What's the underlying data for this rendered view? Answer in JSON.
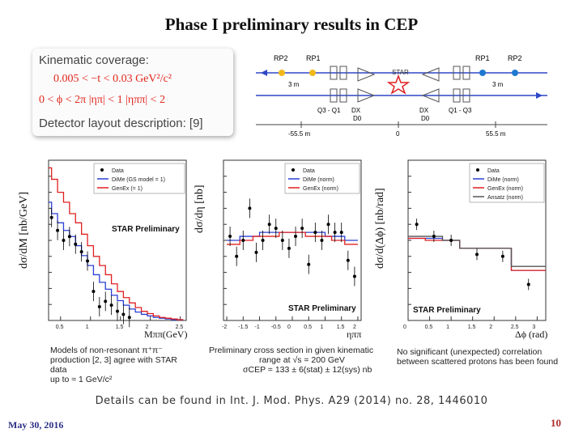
{
  "slide": {
    "title": "Phase I preliminary results in CEP",
    "details": "Details can be found in Int. J. Mod. Phys. A29 (2014) no. 28, 1446010",
    "date": "May 30, 2016",
    "page_number": "10"
  },
  "kinematics": {
    "heading": "Kinematic coverage:",
    "line1": "0.005 < −t < 0.03 GeV²/c²",
    "line2": "0 < ϕ < 2π   |ηπ| < 1   |ηππ| < 2",
    "layout_heading": "Detector layout description: [9]"
  },
  "detector": {
    "labels_top": [
      "RP2",
      "RP1",
      "RP1",
      "RP2"
    ],
    "labels_mid": [
      "Q3 - Q1",
      "DX",
      "DX",
      "D0",
      "Q1 - Q3"
    ],
    "d0_left": "D0",
    "dist": [
      "3 m",
      "3 m"
    ],
    "star": "STAR",
    "axis_ticks": [
      "-55.5 m",
      "0",
      "55.5 m"
    ]
  },
  "legend": {
    "data": "Data",
    "dime_p1": "DiMe (GS model = 1)",
    "genex_p1": "GenEx (= 1)",
    "dime": "DiMe (norm)",
    "genex": "GenEx (norm)",
    "ansatz": "Ansatz (norm)"
  },
  "colors": {
    "dime": "#2a3fd4",
    "genex": "#e02020",
    "ansatz": "#555555"
  },
  "panels": {
    "p1": {
      "ylabel": "dσ/dM [nb/GeV]",
      "xlabel": "Mππ(GeV)",
      "tag": "STAR Preliminary",
      "ticks": [
        "0.5",
        "1",
        "1.5",
        "2",
        "2.5"
      ],
      "caption": [
        "Models of non-resonant π⁺π⁻",
        "production [2, 3] agree with STAR data",
        "up to ≈ 1 GeV/c²"
      ]
    },
    "p2": {
      "ylabel": "dσ/dη [nb]",
      "xlabel": "ηππ",
      "tag": "STAR Preliminary",
      "ticks": [
        "-2",
        "-1.5",
        "-1",
        "-0.5",
        "0",
        "0.5",
        "1",
        "1.5",
        "2"
      ],
      "caption": [
        "Preliminary cross section in given kinematic",
        "range at √s = 200 GeV",
        "σCEP = 133 ± 6(stat) ± 12(sys) nb"
      ]
    },
    "p3": {
      "ylabel": "dσ/d(Δϕ) [nb/rad]",
      "xlabel": "Δϕ (rad)",
      "tag": "STAR Preliminary",
      "ticks": [
        "0",
        "0.5",
        "1",
        "1.5",
        "2",
        "2.5",
        "3"
      ],
      "caption": [
        "No significant (unexpected) correlation",
        "between scattered protons has been found"
      ]
    }
  },
  "chart_data": [
    {
      "type": "line",
      "title": "",
      "xlabel": "Mππ(GeV)",
      "ylabel": "dσ/dM [nb/GeV]",
      "xlim": [
        0.3,
        2.6
      ],
      "ylim": [
        0,
        210
      ],
      "data_points": {
        "x": [
          0.35,
          0.45,
          0.55,
          0.65,
          0.75,
          0.85,
          0.95,
          1.05,
          1.15,
          1.25,
          1.35,
          1.45,
          1.55,
          1.65
        ],
        "y": [
          135,
          118,
          105,
          110,
          100,
          90,
          78,
          38,
          18,
          25,
          20,
          12,
          8,
          4
        ]
      },
      "series": [
        {
          "name": "DiMe (GS model = 1)",
          "x": [
            0.3,
            0.4,
            0.5,
            0.6,
            0.7,
            0.8,
            0.9,
            1.0,
            1.1,
            1.2,
            1.3,
            1.4,
            1.5,
            1.6,
            1.7,
            1.8,
            1.9,
            2.0,
            2.1,
            2.2,
            2.3,
            2.4,
            2.5
          ],
          "values": [
            155,
            140,
            128,
            118,
            110,
            98,
            85,
            72,
            60,
            50,
            41,
            33,
            26,
            20,
            15,
            11,
            8,
            6,
            4,
            3,
            2,
            1,
            1
          ]
        },
        {
          "name": "GenEx (= 1)",
          "x": [
            0.3,
            0.4,
            0.5,
            0.6,
            0.7,
            0.8,
            0.9,
            1.0,
            1.1,
            1.2,
            1.3,
            1.4,
            1.5,
            1.6,
            1.7,
            1.8,
            1.9,
            2.0,
            2.1,
            2.2,
            2.3,
            2.4,
            2.5
          ],
          "values": [
            200,
            185,
            168,
            155,
            140,
            128,
            113,
            98,
            84,
            72,
            60,
            48,
            38,
            30,
            23,
            17,
            12,
            9,
            6,
            4,
            3,
            2,
            1
          ]
        }
      ]
    },
    {
      "type": "line",
      "xlabel": "ηππ",
      "ylabel": "dσ/dη [nb]",
      "xlim": [
        -2.1,
        2.1
      ],
      "ylim": [
        0,
        40
      ],
      "data_points": {
        "x": [
          -1.9,
          -1.7,
          -1.5,
          -1.3,
          -1.1,
          -0.9,
          -0.7,
          -0.5,
          -0.3,
          -0.1,
          0.1,
          0.3,
          0.5,
          0.7,
          0.9,
          1.1,
          1.3,
          1.5,
          1.7,
          1.9
        ],
        "y": [
          21,
          16,
          20,
          28,
          17,
          20,
          24,
          23,
          20,
          18,
          21,
          23,
          14,
          22,
          20,
          24,
          22,
          22,
          15,
          11
        ]
      },
      "series": [
        {
          "name": "DiMe (norm)",
          "values": [
            20,
            20,
            21,
            21,
            21,
            22,
            22,
            22,
            22,
            22,
            22,
            22,
            22,
            22,
            22,
            21,
            21,
            21,
            20,
            20
          ]
        },
        {
          "name": "GenEx (norm)",
          "values": [
            19,
            19,
            20,
            20,
            21,
            21,
            21,
            21,
            22,
            22,
            22,
            22,
            21,
            21,
            21,
            21,
            20,
            20,
            19,
            19
          ]
        }
      ]
    },
    {
      "type": "line",
      "xlabel": "Δϕ (rad)",
      "ylabel": "dσ/d(Δϕ) [nb/rad]",
      "xlim": [
        0,
        3.2
      ],
      "ylim": [
        0,
        80
      ],
      "data_points": {
        "x": [
          0.2,
          0.6,
          1.0,
          1.6,
          2.2,
          2.8
        ],
        "y": [
          48,
          42,
          40,
          33,
          32,
          18
        ]
      },
      "series": [
        {
          "name": "DiMe (norm)",
          "edges": [
            0,
            0.4,
            0.8,
            1.2,
            2.0,
            2.4,
            2.8,
            3.2
          ],
          "values": [
            41,
            41,
            40,
            36,
            36,
            25,
            25
          ]
        },
        {
          "name": "GenEx (norm)",
          "edges": [
            0,
            0.4,
            0.8,
            1.2,
            2.0,
            2.4,
            2.8,
            3.2
          ],
          "values": [
            41,
            40,
            40,
            36,
            36,
            25,
            25
          ]
        },
        {
          "name": "Ansatz (norm)",
          "edges": [
            0,
            0.4,
            0.8,
            1.2,
            2.0,
            2.4,
            2.8,
            3.2
          ],
          "values": [
            42,
            42,
            40,
            36,
            36,
            27,
            27
          ]
        }
      ]
    }
  ]
}
